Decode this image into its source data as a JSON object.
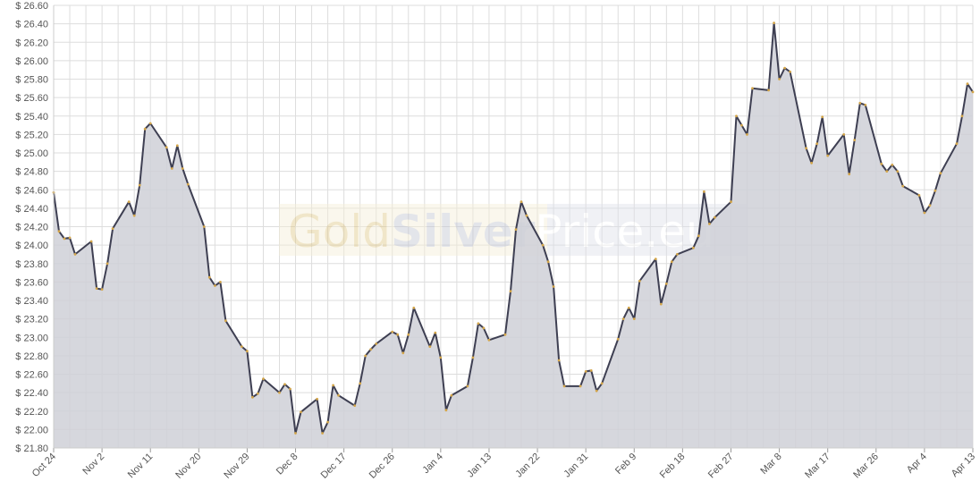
{
  "colors": {
    "line": "#3e3f52",
    "fill": "#cfd0d7",
    "marker": "#d4a64a",
    "grid": "#dddddd",
    "watermark_gold": "#e8d9a8",
    "watermark_silver": "#c8cad6"
  },
  "watermark": {
    "part1": "Gold",
    "part2": "Silver",
    "part3": "Price.eu"
  },
  "chart_data": {
    "type": "area",
    "title": "",
    "xlabel": "",
    "ylabel": "",
    "ylim": [
      21.8,
      26.6
    ],
    "y_ticks": [
      21.8,
      22.0,
      22.2,
      22.4,
      22.6,
      22.8,
      23.0,
      23.2,
      23.4,
      23.6,
      23.8,
      24.0,
      24.2,
      24.4,
      24.6,
      24.8,
      25.0,
      25.2,
      25.4,
      25.6,
      25.8,
      26.0,
      26.2,
      26.4,
      26.6
    ],
    "y_tick_prefix": "$ ",
    "x_tick_labels": [
      "Oct 24",
      "Nov 2",
      "Nov 11",
      "Nov 20",
      "Nov 29",
      "Dec 8",
      "Dec 17",
      "Dec 26",
      "Jan 4",
      "Jan 13",
      "Jan 22",
      "Jan 31",
      "Feb 9",
      "Feb 18",
      "Feb 27",
      "Mar 8",
      "Mar 17",
      "Mar 26",
      "Apr 4",
      "Apr 13"
    ],
    "x_range_days": [
      0,
      171
    ],
    "grid": true,
    "legend": "none",
    "series": [
      {
        "x": [
          0,
          1,
          2,
          3,
          4,
          7,
          8,
          9,
          10,
          11,
          14,
          15,
          16,
          17,
          18,
          21,
          22,
          23,
          24,
          25,
          28,
          29,
          30,
          31,
          32,
          35,
          36,
          37,
          38,
          39,
          42,
          43,
          44,
          45,
          46,
          49,
          50,
          51,
          52,
          53,
          56,
          57,
          58,
          59,
          60,
          63,
          64,
          65,
          66,
          67,
          70,
          71,
          72,
          73,
          74,
          77,
          78,
          79,
          80,
          81,
          84,
          85,
          86,
          87,
          88,
          91,
          92,
          93,
          94,
          95,
          98,
          99,
          100,
          101,
          102,
          105,
          106,
          107,
          108,
          109,
          112,
          113,
          114,
          115,
          116,
          119,
          120,
          121,
          122,
          123,
          126,
          127,
          128,
          129,
          130,
          133,
          134,
          135,
          136,
          137,
          140,
          141,
          142,
          143,
          144,
          147,
          148,
          149,
          150,
          151,
          154,
          155,
          156,
          157,
          158,
          161,
          162,
          163,
          164,
          165,
          168,
          169,
          170,
          171
        ],
        "y": [
          24.57,
          24.15,
          24.07,
          24.08,
          23.9,
          24.04,
          23.53,
          23.52,
          23.8,
          24.18,
          24.47,
          24.32,
          24.65,
          25.26,
          25.32,
          25.06,
          24.83,
          25.08,
          24.83,
          24.66,
          24.2,
          23.65,
          23.56,
          23.6,
          23.18,
          22.9,
          22.85,
          22.35,
          22.39,
          22.55,
          22.4,
          22.49,
          22.44,
          21.96,
          22.19,
          22.33,
          21.96,
          22.08,
          22.48,
          22.37,
          22.26,
          22.5,
          22.8,
          22.87,
          22.93,
          23.06,
          23.03,
          22.83,
          23.03,
          23.32,
          22.9,
          23.05,
          22.78,
          22.21,
          22.37,
          22.47,
          22.78,
          23.15,
          23.1,
          22.97,
          23.03,
          23.5,
          24.17,
          24.47,
          24.32,
          24.0,
          23.82,
          23.55,
          22.75,
          22.47,
          22.47,
          22.63,
          22.64,
          22.42,
          22.5,
          22.98,
          23.2,
          23.32,
          23.2,
          23.61,
          23.85,
          23.36,
          23.58,
          23.82,
          23.9,
          23.97,
          24.1,
          24.58,
          24.23,
          24.3,
          24.47,
          25.4,
          25.3,
          25.2,
          25.7,
          25.68,
          26.41,
          25.8,
          25.92,
          25.88,
          25.05,
          24.89,
          25.1,
          25.39,
          24.97,
          25.2,
          24.77,
          25.14,
          25.54,
          25.52,
          24.88,
          24.8,
          24.87,
          24.8,
          24.64,
          24.54,
          24.35,
          24.43,
          24.59,
          24.78,
          25.1,
          25.4,
          25.75,
          25.66
        ]
      }
    ]
  }
}
